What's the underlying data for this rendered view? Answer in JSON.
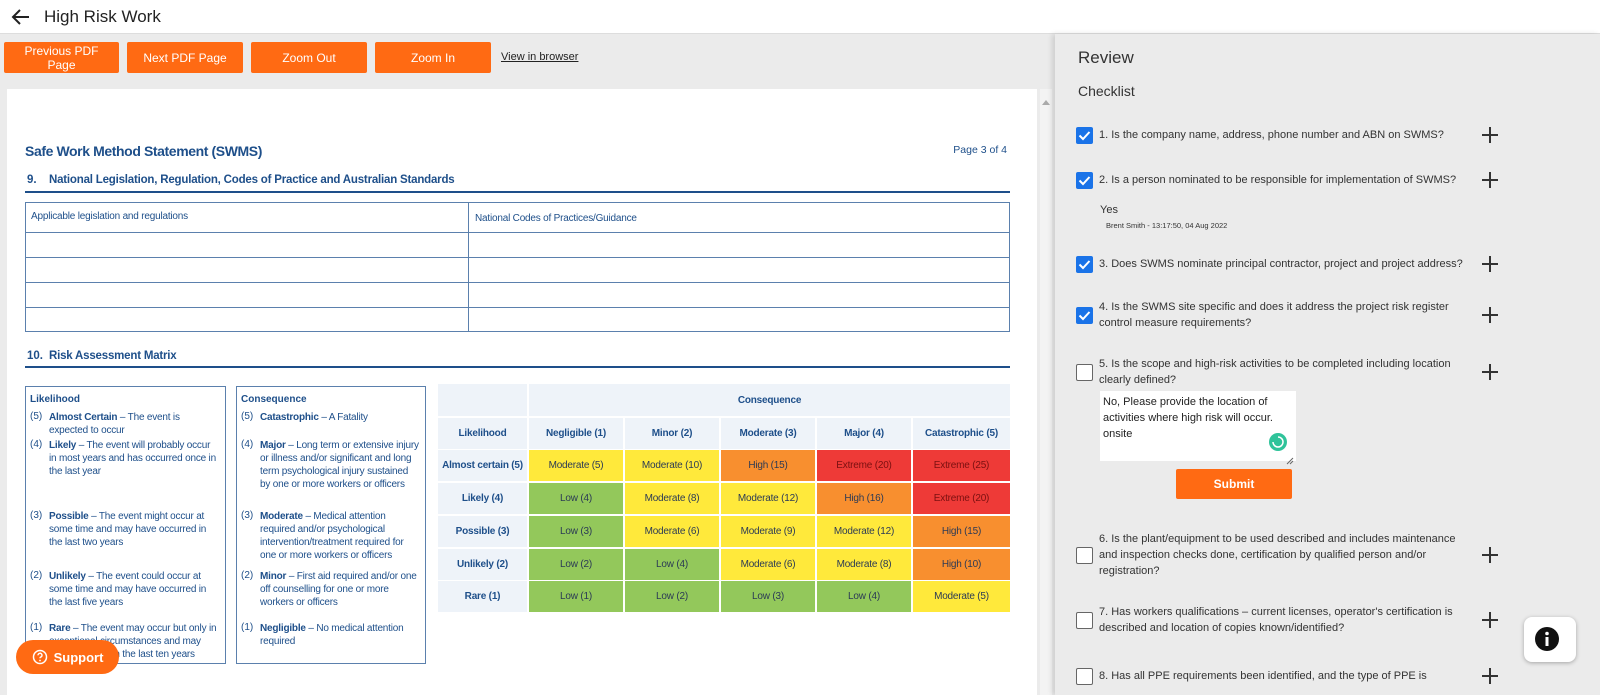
{
  "header": {
    "title": "High Risk Work"
  },
  "toolbar": {
    "buttons": [
      "Previous PDF Page",
      "Next PDF Page",
      "Zoom Out",
      "Zoom In"
    ],
    "link": "View in browser"
  },
  "document": {
    "title": "Safe Work Method Statement (SWMS)",
    "page": "Page 3 of  4",
    "section9": {
      "number": "9.",
      "heading": "National Legislation, Regulation, Codes of Practice and Australian Standards",
      "columns": [
        "Applicable legislation and regulations",
        "National Codes of Practices/Guidance"
      ]
    },
    "section10": {
      "number": "10.",
      "heading": "Risk Assessment Matrix"
    },
    "likelihood": {
      "title": "Likelihood",
      "items": [
        {
          "level": "(5)",
          "term": "Almost Certain",
          "description": "– The event is expected to occur"
        },
        {
          "level": "(4)",
          "term": "Likely",
          "description": "– The event will probably occur in most years and has occurred once in the last year"
        },
        {
          "level": "(3)",
          "term": "Possible",
          "description": "– The event might occur at some time and may  have occurred in the last two years"
        },
        {
          "level": "(2)",
          "term": "Unlikely",
          "description": "– The event could occur at some time and may have occurred in the last five years"
        },
        {
          "level": "(1)",
          "term": "Rare",
          "description": "– The event may occur but only in exceptional circumstances and may have occurred in the last ten years"
        }
      ]
    },
    "consequence": {
      "title": "Consequence",
      "items": [
        {
          "level": "(5)",
          "term": "Catastrophic",
          "description": "– A Fatality"
        },
        {
          "level": "(4)",
          "term": "Major",
          "description": "– Long term or extensive injury or illness and/or significant and long term psychological injury sustained by one or more workers or officers"
        },
        {
          "level": "(3)",
          "term": "Moderate",
          "description": "– Medical attention required and/or psychological intervention/treatment required for one or more workers or officers"
        },
        {
          "level": "(2)",
          "term": "Minor",
          "description": "– First aid required and/or one off counselling for one or more workers or officers"
        },
        {
          "level": "(1)",
          "term": "Negligible",
          "description": "– No medical attention required"
        }
      ]
    },
    "matrix": {
      "header": "Consequence",
      "corner": "Likelihood",
      "columns": [
        "Negligible (1)",
        "Minor (2)",
        "Moderate (3)",
        "Major (4)",
        "Catastrophic (5)"
      ],
      "rows": [
        {
          "label": "Almost certain (5)",
          "cells": [
            {
              "text": "Moderate (5)",
              "color": "#ffe93b"
            },
            {
              "text": "Moderate (10)",
              "color": "#ffe93b"
            },
            {
              "text": "High (15)",
              "color": "#f88f2f"
            },
            {
              "text": "Extreme (20)",
              "color": "#ee3a37"
            },
            {
              "text": "Extreme (25)",
              "color": "#ee3a37"
            }
          ]
        },
        {
          "label": "Likely (4)",
          "cells": [
            {
              "text": "Low (4)",
              "color": "#93c85b"
            },
            {
              "text": "Moderate (8)",
              "color": "#ffe93b"
            },
            {
              "text": "Moderate (12)",
              "color": "#ffe93b"
            },
            {
              "text": "High (16)",
              "color": "#f88f2f"
            },
            {
              "text": "Extreme (20)",
              "color": "#ee3a37"
            }
          ]
        },
        {
          "label": "Possible (3)",
          "cells": [
            {
              "text": "Low (3)",
              "color": "#93c85b"
            },
            {
              "text": "Moderate (6)",
              "color": "#ffe93b"
            },
            {
              "text": "Moderate (9)",
              "color": "#ffe93b"
            },
            {
              "text": "Moderate (12)",
              "color": "#ffe93b"
            },
            {
              "text": "High (15)",
              "color": "#f88f2f"
            }
          ]
        },
        {
          "label": "Unlikely (2)",
          "cells": [
            {
              "text": "Low (2)",
              "color": "#93c85b"
            },
            {
              "text": "Low (4)",
              "color": "#93c85b"
            },
            {
              "text": "Moderate (6)",
              "color": "#ffe93b"
            },
            {
              "text": "Moderate (8)",
              "color": "#ffe93b"
            },
            {
              "text": "High (10)",
              "color": "#f88f2f"
            }
          ]
        },
        {
          "label": "Rare (1)",
          "cells": [
            {
              "text": "Low (1)",
              "color": "#93c85b"
            },
            {
              "text": "Low (2)",
              "color": "#93c85b"
            },
            {
              "text": "Low (3)",
              "color": "#93c85b"
            },
            {
              "text": "Low (4)",
              "color": "#93c85b"
            },
            {
              "text": "Moderate (5)",
              "color": "#ffe93b"
            }
          ]
        }
      ]
    }
  },
  "support": "Support",
  "review": {
    "title": "Review",
    "subtitle": "Checklist",
    "items": [
      {
        "checked": true,
        "text": "1. Is the company name, address, phone number and ABN on SWMS?"
      },
      {
        "checked": true,
        "text": "2. Is a person nominated to be responsible for implementation of SWMS?",
        "answer": "Yes",
        "answered_by": "Brent Smith - 13:17:50, 04 Aug 2022"
      },
      {
        "checked": true,
        "text": "3. Does SWMS nominate principal contractor, project and project address?"
      },
      {
        "checked": true,
        "text": "4. Is the SWMS site specific and does it address the project risk register control measure requirements?"
      },
      {
        "checked": false,
        "text": "5. Is the scope and high-risk activities to be completed including location clearly defined?",
        "comment": "No, Please provide the location of activities where high risk will occur. onsite",
        "button": "Submit"
      },
      {
        "checked": false,
        "text": "6. Is the plant/equipment to be used described and includes maintenance and inspection checks done, certification by qualified person and/or registration?"
      },
      {
        "checked": false,
        "text": "7. Has workers qualifications – current licenses, operator's certification is described and location of copies known/identified?"
      },
      {
        "checked": false,
        "text": "8. Has all PPE requirements been identified, and the type of PPE is"
      }
    ]
  }
}
